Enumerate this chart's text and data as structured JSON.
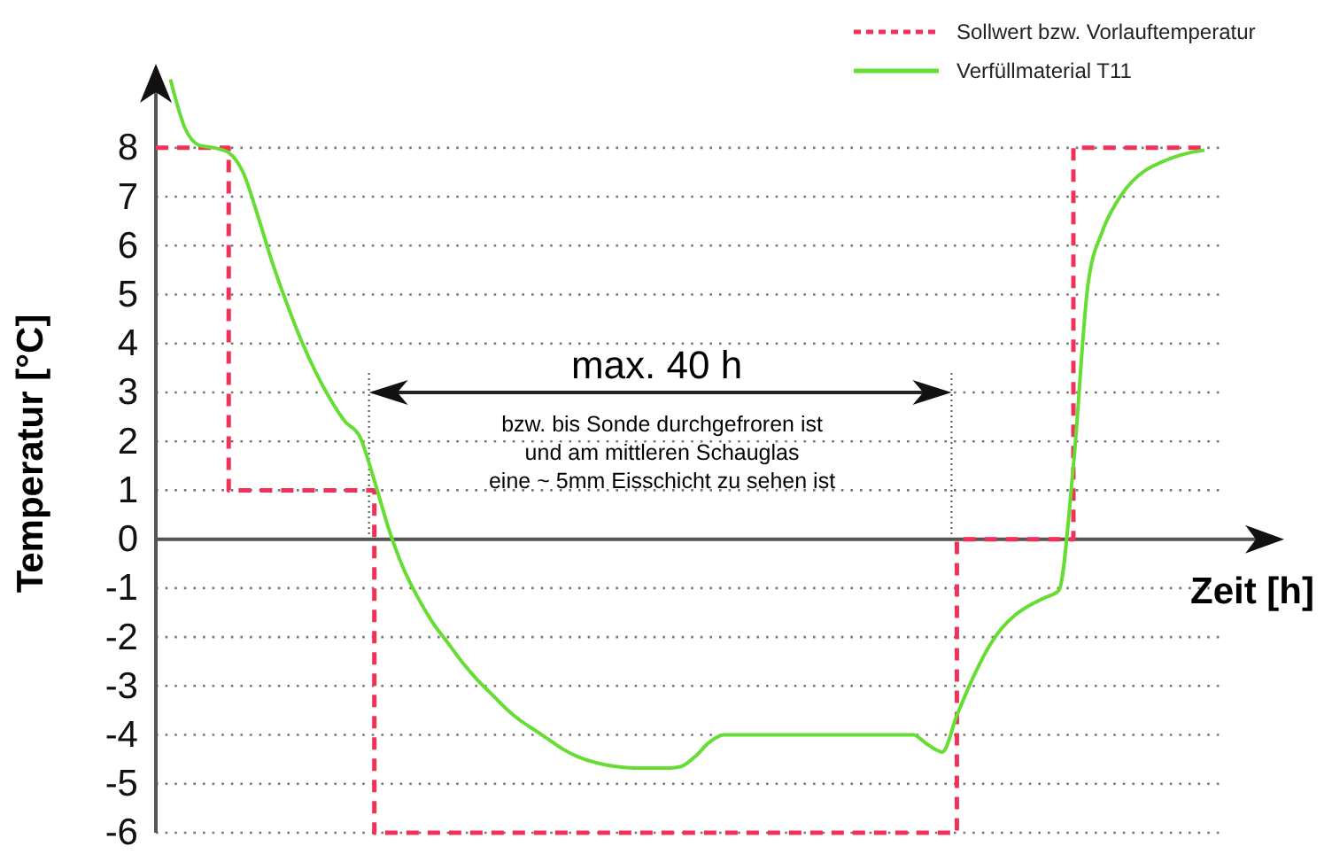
{
  "chart_data": {
    "type": "line",
    "ylabel": "Temperatur [°C]",
    "xlabel": "Zeit [h]",
    "categories": [
      null,
      null,
      null,
      null,
      null,
      null,
      null,
      null,
      null,
      null,
      null,
      null,
      null,
      null,
      null,
      null,
      null,
      null,
      null,
      null,
      null,
      null,
      null,
      null,
      null,
      null,
      null,
      null,
      null,
      null,
      null,
      null,
      null,
      null,
      null,
      null,
      null,
      null,
      null,
      null,
      null,
      null,
      null,
      null,
      null,
      null,
      null,
      null,
      null,
      null,
      null,
      null,
      null,
      null,
      null,
      null,
      null,
      null,
      null,
      null,
      null,
      null,
      null,
      null,
      null,
      null,
      null,
      null,
      null,
      null,
      null,
      null,
      null
    ],
    "series": [
      {
        "name": "Sollwert bzw. Vorlauftemperatur",
        "type": "step",
        "line_style": "dashed",
        "color": "#f0325a",
        "values": [
          8,
          8,
          8,
          8,
          8,
          1,
          1,
          1,
          1,
          1,
          1,
          1,
          1,
          1,
          1,
          -6,
          -6,
          -6,
          -6,
          -6,
          -6,
          -6,
          -6,
          -6,
          -6,
          -6,
          -6,
          -6,
          -6,
          -6,
          -6,
          -6,
          -6,
          -6,
          -6,
          -6,
          -6,
          -6,
          -6,
          -6,
          -6,
          -6,
          -6,
          -6,
          -6,
          -6,
          -6,
          -6,
          -6,
          -6,
          -6,
          -6,
          -6,
          -6,
          -6,
          0,
          0,
          0,
          0,
          0,
          0,
          0,
          0,
          8,
          8,
          8,
          8,
          8,
          8,
          8,
          8,
          8,
          8
        ]
      },
      {
        "name": "Verfüllmaterial T11",
        "type": "line",
        "line_style": "solid",
        "color": "#66dd33",
        "values": [
          null,
          9.4,
          8.4,
          8.05,
          8.0,
          7.9,
          7.49,
          6.61,
          5.65,
          4.81,
          4.05,
          3.4,
          2.85,
          2.4,
          2.1,
          1.2,
          0.2,
          -0.6,
          -1.2,
          -1.7,
          -2.1,
          -2.5,
          -2.85,
          -3.15,
          -3.45,
          -3.7,
          -3.9,
          -4.1,
          -4.3,
          -4.45,
          -4.55,
          -4.62,
          -4.66,
          -4.68,
          -4.68,
          -4.68,
          -4.65,
          -4.45,
          -4.15,
          -4.0,
          -4.0,
          -4.0,
          -4.0,
          -4.0,
          -4.0,
          -4.0,
          -4.0,
          -4.0,
          -4.0,
          -4.0,
          -4.0,
          -4.0,
          -4.0,
          -4.2,
          -4.35,
          -3.6,
          -2.9,
          -2.3,
          -1.85,
          -1.55,
          -1.35,
          -1.2,
          -1.05,
          1.5,
          5.2,
          6.3,
          6.9,
          7.3,
          7.55,
          7.7,
          7.82,
          7.9,
          7.95
        ]
      }
    ],
    "ylim": [
      -6,
      9.5
    ],
    "yticks": [
      -6,
      -5,
      -4,
      -3,
      -2,
      -1,
      0,
      1,
      2,
      3,
      4,
      5,
      6,
      7,
      8
    ],
    "grid": "y",
    "legend": "top right",
    "tick_labels": "y",
    "marker": "none",
    "annotations": [
      {
        "text": "max. 40 h"
      },
      {
        "text": "bzw. bis Sonde durchgefroren ist\nund am mittleren Schauglas\neine ~ 5mm Eisschicht zu sehen ist"
      }
    ]
  }
}
